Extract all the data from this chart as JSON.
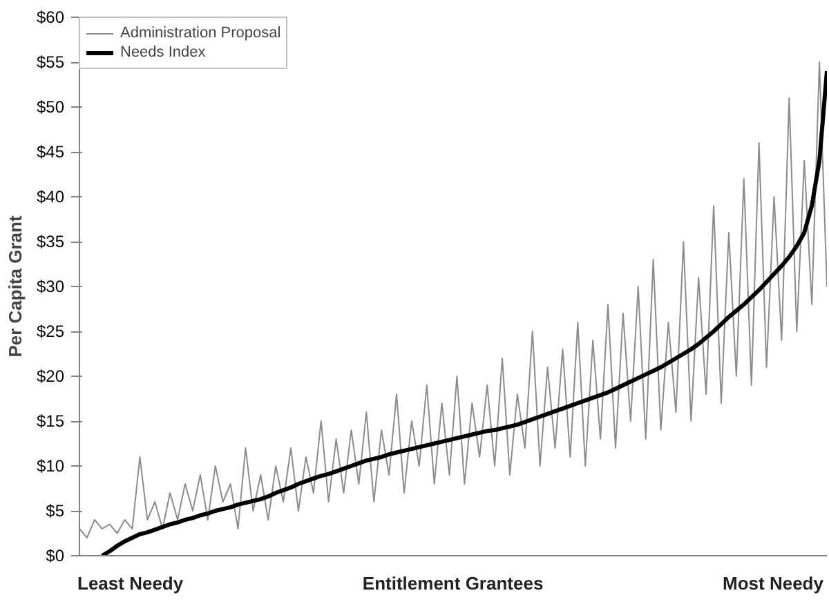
{
  "chart_data": {
    "type": "line",
    "ylabel": "Per Capita Grant",
    "xlabel": "Entitlement Grantees",
    "annotations": [
      "Least Needy",
      "Most Needy"
    ],
    "categories": [
      null,
      null,
      null,
      null,
      null,
      null,
      null,
      null,
      null,
      null,
      null,
      null,
      null,
      null,
      null,
      null,
      null,
      null,
      null,
      null,
      null,
      null,
      null,
      null,
      null,
      null,
      null,
      null,
      null,
      null,
      null,
      null,
      null,
      null,
      null,
      null,
      null,
      null,
      null,
      null,
      null,
      null,
      null,
      null,
      null,
      null,
      null,
      null,
      null,
      null,
      null,
      null,
      null,
      null,
      null,
      null,
      null,
      null,
      null,
      null,
      null,
      null,
      null,
      null,
      null,
      null,
      null,
      null,
      null,
      null,
      null,
      null,
      null,
      null,
      null,
      null,
      null,
      null,
      null,
      null,
      null,
      null,
      null,
      null,
      null,
      null,
      null,
      null,
      null,
      null,
      null,
      null,
      null,
      null,
      null,
      null,
      null,
      null,
      null,
      null
    ],
    "series": [
      {
        "name": "Administration Proposal",
        "color": "#8c8c8c",
        "values": [
          3,
          2,
          4,
          3,
          3.5,
          2.5,
          4,
          3,
          11,
          4,
          6,
          3,
          7,
          4,
          8,
          5,
          9,
          4,
          10,
          6,
          8,
          3,
          12,
          5,
          9,
          4,
          10,
          6,
          12,
          5,
          11,
          7,
          15,
          6,
          13,
          7,
          14,
          8,
          16,
          6,
          14,
          9,
          18,
          7,
          15,
          10,
          19,
          8,
          17,
          9,
          20,
          8,
          17,
          11,
          19,
          10,
          22,
          9,
          18,
          12,
          25,
          10,
          21,
          12,
          23,
          11,
          26,
          10,
          24,
          13,
          28,
          12,
          27,
          15,
          30,
          13,
          33,
          14,
          26,
          16,
          35,
          15,
          31,
          18,
          39,
          17,
          36,
          20,
          42,
          19,
          46,
          21,
          40,
          24,
          51,
          25,
          44,
          28,
          55,
          30
        ]
      },
      {
        "name": "Needs Index",
        "color": "#000000",
        "values": [
          null,
          null,
          null,
          0,
          0.5,
          1.1,
          1.6,
          2,
          2.4,
          2.6,
          2.9,
          3.2,
          3.5,
          3.7,
          4,
          4.2,
          4.5,
          4.7,
          5,
          5.2,
          5.4,
          5.7,
          5.9,
          6.1,
          6.3,
          6.6,
          7,
          7.3,
          7.6,
          8,
          8.3,
          8.6,
          8.9,
          9.1,
          9.4,
          9.7,
          10,
          10.3,
          10.6,
          10.8,
          11,
          11.3,
          11.5,
          11.7,
          11.9,
          12.1,
          12.3,
          12.5,
          12.7,
          12.9,
          13.1,
          13.3,
          13.5,
          13.7,
          13.9,
          14,
          14.2,
          14.4,
          14.6,
          14.9,
          15.2,
          15.5,
          15.8,
          16.1,
          16.4,
          16.7,
          17,
          17.3,
          17.6,
          17.9,
          18.2,
          18.6,
          19,
          19.4,
          19.8,
          20.2,
          20.6,
          21,
          21.5,
          22,
          22.5,
          23,
          23.6,
          24.3,
          25,
          25.8,
          26.6,
          27.3,
          28,
          28.8,
          29.6,
          30.5,
          31.4,
          32.3,
          33.3,
          34.5,
          36,
          39,
          44,
          54
        ]
      }
    ],
    "ylim": [
      0,
      60
    ],
    "yticks": [
      {
        "value": 0,
        "label": "$0"
      },
      {
        "value": 5,
        "label": "$5"
      },
      {
        "value": 10,
        "label": "$10"
      },
      {
        "value": 15,
        "label": "$15"
      },
      {
        "value": 20,
        "label": "$20"
      },
      {
        "value": 25,
        "label": "$25"
      },
      {
        "value": 30,
        "label": "$30"
      },
      {
        "value": 35,
        "label": "$35"
      },
      {
        "value": 40,
        "label": "$40"
      },
      {
        "value": 45,
        "label": "$45"
      },
      {
        "value": 50,
        "label": "$50"
      },
      {
        "value": 55,
        "label": "$55"
      },
      {
        "value": 60,
        "label": "$60"
      }
    ],
    "grid": false,
    "legend": "top left",
    "marker": "none",
    "line_style": "solid"
  }
}
